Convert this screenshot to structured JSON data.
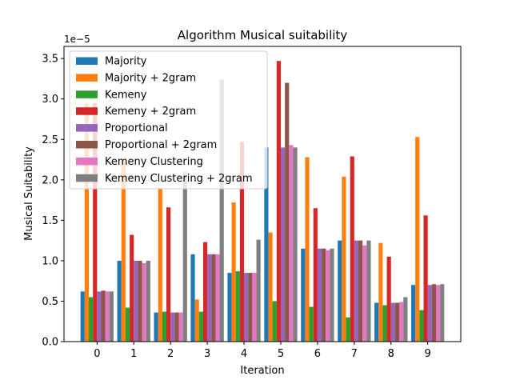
{
  "chart_data": {
    "type": "bar",
    "title": "Algorithm Musical suitability",
    "xlabel": "Iteration",
    "ylabel": "Musical Suitability",
    "scale_label": "1e−5",
    "categories": [
      "0",
      "1",
      "2",
      "3",
      "4",
      "5",
      "6",
      "7",
      "8",
      "9"
    ],
    "ylim": [
      0,
      3.65
    ],
    "yticks": [
      "0.0",
      "0.5",
      "1.0",
      "1.5",
      "2.0",
      "2.5",
      "3.0",
      "3.5"
    ],
    "grid": false,
    "legend_position": "top-left",
    "series": [
      {
        "name": "Majority",
        "color": "#1f77b4",
        "values": [
          0.62,
          1.0,
          0.36,
          1.08,
          0.85,
          2.4,
          1.15,
          1.25,
          0.48,
          0.7
        ]
      },
      {
        "name": "Majority + 2gram",
        "color": "#ff7f0e",
        "values": [
          2.95,
          2.25,
          1.9,
          0.52,
          1.72,
          1.35,
          2.28,
          2.04,
          1.22,
          2.53
        ]
      },
      {
        "name": "Kemeny",
        "color": "#2ca02c",
        "values": [
          0.55,
          0.42,
          0.37,
          0.37,
          0.87,
          0.5,
          0.43,
          0.3,
          0.45,
          0.39
        ]
      },
      {
        "name": "Kemeny + 2gram",
        "color": "#d62728",
        "values": [
          2.95,
          1.32,
          1.66,
          1.23,
          2.47,
          3.47,
          1.65,
          2.29,
          1.05,
          1.56
        ]
      },
      {
        "name": "Proportional",
        "color": "#9467bd",
        "values": [
          0.62,
          1.0,
          0.36,
          1.08,
          0.85,
          2.4,
          1.15,
          1.25,
          0.48,
          0.7
        ]
      },
      {
        "name": "Proportional + 2gram",
        "color": "#8c564b",
        "values": [
          0.63,
          1.0,
          0.36,
          1.08,
          0.85,
          3.2,
          1.15,
          1.25,
          0.48,
          0.71
        ]
      },
      {
        "name": "Kemeny Clustering",
        "color": "#e377c2",
        "values": [
          0.62,
          0.97,
          0.36,
          1.08,
          0.85,
          2.43,
          1.13,
          1.19,
          0.49,
          0.7
        ]
      },
      {
        "name": "Kemeny Clustering + 2gram",
        "color": "#7f7f7f",
        "values": [
          0.62,
          1.0,
          2.1,
          3.24,
          1.26,
          2.4,
          1.15,
          1.25,
          0.55,
          0.71
        ]
      }
    ]
  }
}
